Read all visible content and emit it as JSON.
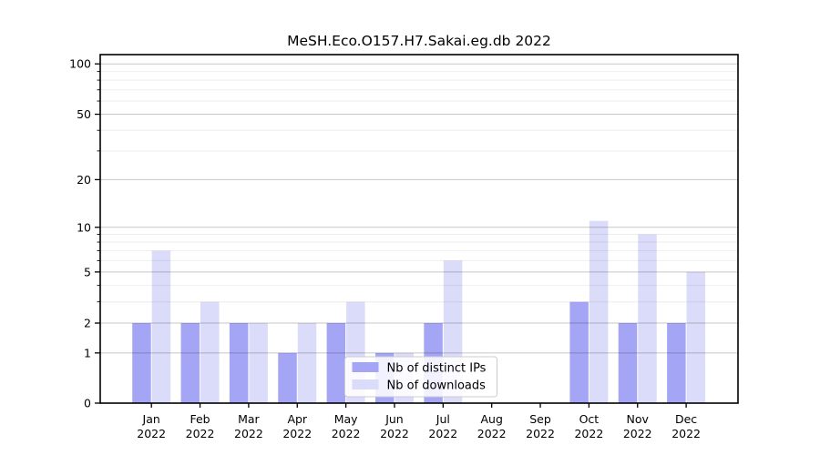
{
  "chart_data": {
    "type": "bar",
    "title": "MeSH.Eco.O157.H7.Sakai.eg.db 2022",
    "y_scale": "log10(1+x)",
    "grid": true,
    "categories": [
      "Jan 2022",
      "Feb 2022",
      "Mar 2022",
      "Apr 2022",
      "May 2022",
      "Jun 2022",
      "Jul 2022",
      "Aug 2022",
      "Sep 2022",
      "Oct 2022",
      "Nov 2022",
      "Dec 2022"
    ],
    "series": [
      {
        "name": "Nb of distinct IPs",
        "key": "distinct-ips",
        "color": "#a5a5f5",
        "values": [
          2,
          2,
          2,
          1,
          2,
          1,
          2,
          0,
          0,
          3,
          2,
          2
        ]
      },
      {
        "name": "Nb of downloads",
        "key": "downloads",
        "color": "#dbdbfa",
        "values": [
          7,
          3,
          2,
          2,
          3,
          1,
          6,
          0,
          0,
          11,
          9,
          5
        ]
      }
    ],
    "y_major_ticks": [
      0,
      1,
      2,
      5,
      10,
      20,
      50,
      100
    ],
    "y_minor_gridlines": [
      3,
      4,
      6,
      7,
      8,
      9,
      30,
      40,
      60,
      70,
      80,
      90
    ],
    "ylim": [
      0,
      115
    ],
    "legend": {
      "position": "lower center",
      "entries": [
        "Nb of distinct IPs",
        "Nb of downloads"
      ]
    },
    "colors": {
      "axis": "#000000",
      "grid_major": "rgba(0,0,0,0.22)",
      "grid_minor": "rgba(0,0,0,0.07)",
      "legend_border": "#cccccc",
      "legend_background": "rgba(255,255,255,0.85)"
    }
  }
}
